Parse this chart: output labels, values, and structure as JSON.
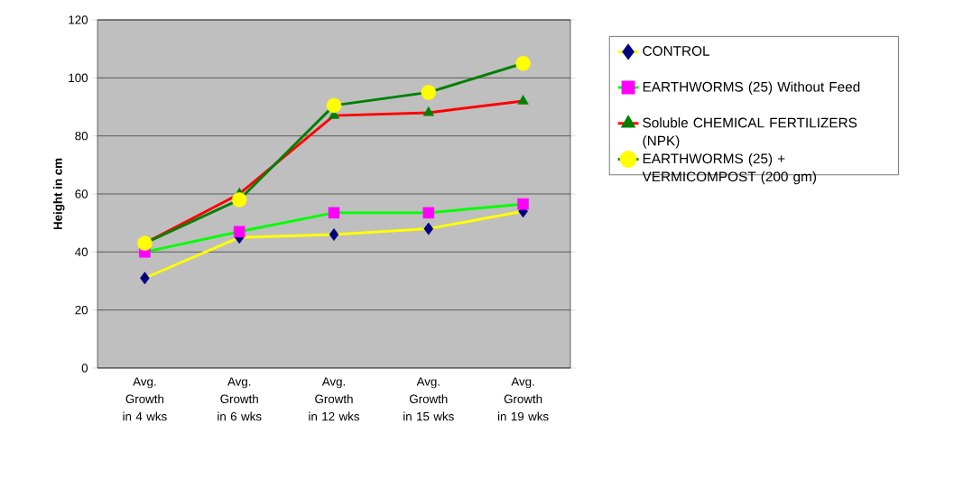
{
  "chart_data": {
    "type": "line",
    "ylabel": "Height in cm",
    "categories": [
      "Avg. Growth in 4 wks",
      "Avg. Growth in 6 wks",
      "Avg. Growth in 12 wks",
      "Avg. Growth in 15 wks",
      "Avg. Growth in 19 wks"
    ],
    "series": [
      {
        "name": "CONTROL",
        "color": "#ffff00",
        "colors": [
          "#000080",
          "#000080",
          "#000080",
          "#000080",
          "#000080"
        ],
        "marker": "diamond",
        "values": [
          31,
          45,
          46,
          48,
          54
        ]
      },
      {
        "name": "EARTHWORMS (25) Without Feed",
        "color": "#00ff00",
        "colors": [
          "#ff00ff",
          "#ff00ff",
          "#ff00ff",
          "#ff00ff",
          "#ff00ff"
        ],
        "marker": "square",
        "values": [
          40,
          47,
          53.5,
          53.5,
          56.5
        ]
      },
      {
        "name": "Soluble CHEMICAL FERTILIZERS (NPK)",
        "color": "#ff0000",
        "colors": [
          "#008000",
          "#008000",
          "#008000",
          "#008000",
          "#008000"
        ],
        "marker": "triangle",
        "values": [
          43,
          60,
          87,
          88,
          92
        ]
      },
      {
        "name": "EARTHWORMS (25) + VERMICOMPOST (200 gm)",
        "color": "#008000",
        "colors": [
          "#ffff00",
          "#ffff00",
          "#ffff00",
          "#ffff00",
          "#ffff00"
        ],
        "marker": "circle",
        "values": [
          43,
          58,
          90.5,
          95,
          105
        ]
      }
    ],
    "ylim": [
      0,
      120
    ],
    "yticks": [
      0,
      20,
      40,
      60,
      80,
      100,
      120
    ],
    "grid": "y",
    "legend": "right",
    "line_style": "solid"
  }
}
